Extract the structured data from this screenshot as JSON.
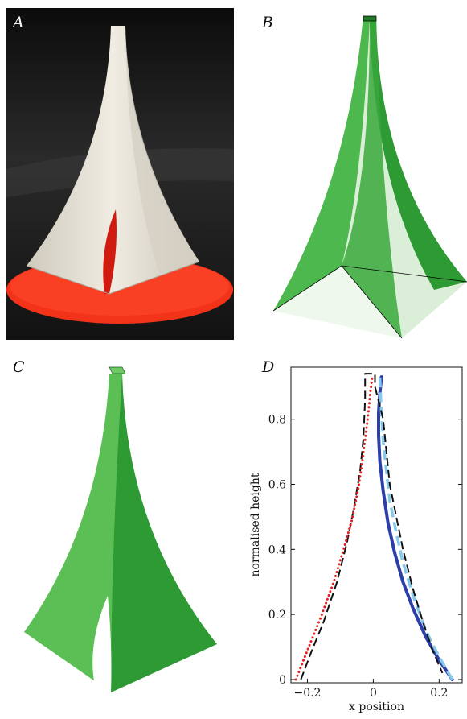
{
  "panels": {
    "a": {
      "label": "A"
    },
    "b": {
      "label": "B"
    },
    "c": {
      "label": "C"
    },
    "d": {
      "label": "D"
    }
  },
  "colors": {
    "photo_background": "#161616",
    "photo_base": "#f2331a",
    "photo_shell": "#e6e2d6",
    "green_dark": "#2d9a33",
    "green_mid": "#4db84d",
    "green_light": "#dbefd8",
    "solid_blue": "#2c3ea8",
    "light_blue_dash": "#86c9ea",
    "black_dash": "#111111",
    "red_dots": "#e02020"
  },
  "chart_data": {
    "type": "line",
    "title": "",
    "xlabel": "x position",
    "ylabel": "normalised height",
    "xlim": [
      -0.25,
      0.27
    ],
    "ylim": [
      -0.01,
      0.96
    ],
    "xticks": [
      -0.2,
      0,
      0.2
    ],
    "xtick_labels": [
      "−0.2",
      "0",
      "0.2"
    ],
    "yticks": [
      0,
      0.2,
      0.4,
      0.6,
      0.8
    ],
    "ytick_labels": [
      "0",
      "0.2",
      "0.4",
      "0.6",
      "0.8"
    ],
    "grid": false,
    "series": [
      {
        "style": "solid",
        "color": "#2c3ea8",
        "x": [
          0.24,
          0.2,
          0.16,
          0.12,
          0.09,
          0.065,
          0.045,
          0.03,
          0.02,
          0.016,
          0.016,
          0.02,
          0.025
        ],
        "y": [
          0,
          0.06,
          0.13,
          0.22,
          0.3,
          0.39,
          0.48,
          0.58,
          0.67,
          0.75,
          0.82,
          0.88,
          0.93
        ]
      },
      {
        "style": "dashed",
        "color": "#86c9ea",
        "x": [
          0.24,
          0.2,
          0.16,
          0.12,
          0.09,
          0.07,
          0.05,
          0.04,
          0.03,
          0.025,
          0.022,
          0.02
        ],
        "y": [
          0,
          0.07,
          0.15,
          0.26,
          0.36,
          0.45,
          0.55,
          0.64,
          0.73,
          0.82,
          0.88,
          0.93
        ]
      },
      {
        "style": "dashed",
        "color": "#111111",
        "x": [
          -0.22,
          -0.19,
          -0.15,
          -0.11,
          -0.08,
          -0.06,
          -0.04,
          -0.03,
          -0.025,
          -0.025,
          0.005,
          0.005,
          0.03,
          0.04,
          0.05,
          0.07,
          0.09,
          0.12,
          0.15,
          0.18,
          0.21
        ],
        "y": [
          0,
          0.08,
          0.18,
          0.3,
          0.42,
          0.52,
          0.64,
          0.74,
          0.86,
          0.94,
          0.94,
          0.9,
          0.8,
          0.7,
          0.6,
          0.5,
          0.4,
          0.28,
          0.18,
          0.09,
          0.02
        ]
      },
      {
        "style": "dotted",
        "color": "#e02020",
        "x": [
          -0.235,
          -0.2,
          -0.16,
          -0.12,
          -0.09,
          -0.065,
          -0.045,
          -0.032,
          -0.022,
          -0.014,
          -0.008,
          -0.003
        ],
        "y": [
          0,
          0.09,
          0.19,
          0.3,
          0.4,
          0.49,
          0.59,
          0.68,
          0.76,
          0.83,
          0.89,
          0.93
        ]
      }
    ]
  }
}
